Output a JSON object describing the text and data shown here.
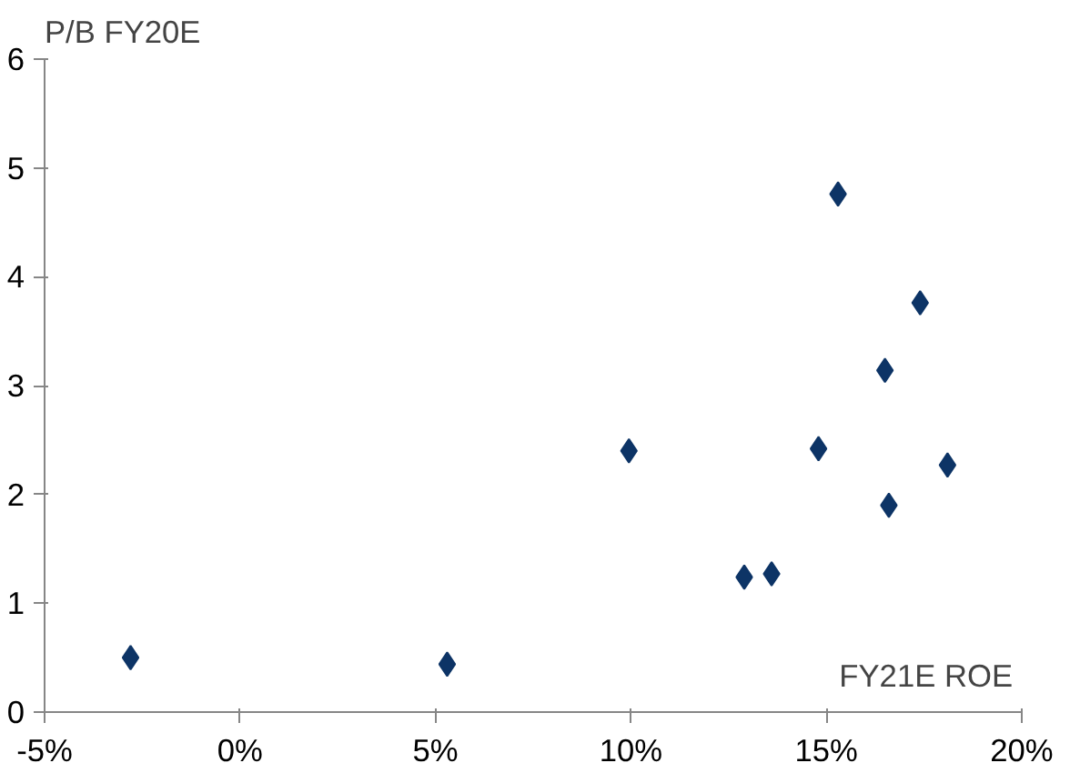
{
  "chart_data": {
    "type": "scatter",
    "xlabel": "FY21E ROE",
    "ylabel": "P/B FY20E",
    "x": [
      -2.8,
      5.3,
      9.95,
      12.9,
      13.6,
      14.8,
      15.3,
      16.5,
      16.6,
      17.4,
      18.1
    ],
    "series": [
      {
        "color": "#0d3466",
        "values": [
          0.5,
          0.44,
          2.4,
          1.24,
          1.27,
          2.42,
          4.76,
          3.14,
          1.9,
          3.76,
          2.27
        ]
      }
    ],
    "xlim": [
      -5,
      20
    ],
    "ylim": [
      0,
      6
    ],
    "xticks": [
      {
        "value": -5,
        "label": "-5%"
      },
      {
        "value": 0,
        "label": "0%"
      },
      {
        "value": 5,
        "label": "5%"
      },
      {
        "value": 10,
        "label": "10%"
      },
      {
        "value": 15,
        "label": "15%"
      },
      {
        "value": 20,
        "label": "20%"
      }
    ],
    "yticks": [
      0,
      1,
      2,
      3,
      4,
      5,
      6
    ],
    "grid": false,
    "marker": "diamond"
  }
}
